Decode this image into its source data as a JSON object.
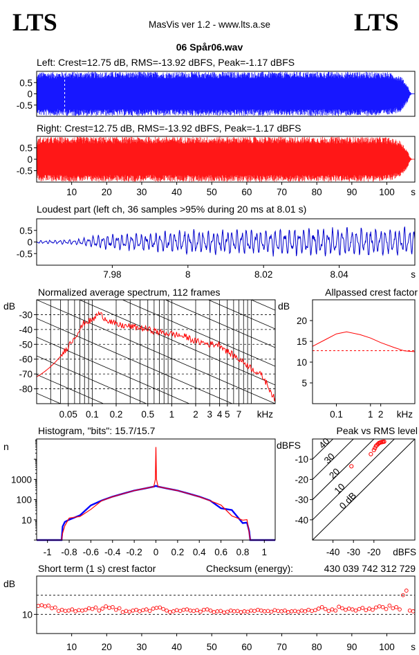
{
  "header": {
    "logo_left": "LTS",
    "logo_right": "LTS",
    "app_title": "MasVis ver 1.2 - www.lts.a.se",
    "file_name": "06 Spår06.wav"
  },
  "chart_data": [
    {
      "id": "left",
      "type": "area",
      "title": "Left: Crest=12.75 dB, RMS=-13.92 dBFS, Peak=-1.17 dBFS",
      "color": "#0000ff",
      "yticks": [
        "0.5",
        "0",
        "-0.5"
      ],
      "ytick_values": [
        0.5,
        0,
        -0.5
      ],
      "ylim": [
        -1,
        1
      ],
      "xlim": [
        0,
        108
      ],
      "marker_x": 8.01,
      "envelope": {
        "x": [
          0,
          0.5,
          1,
          5,
          10,
          20,
          30,
          40,
          50,
          60,
          70,
          80,
          90,
          100,
          104,
          106,
          106.5,
          107,
          108
        ],
        "amp": [
          0.8,
          0.92,
          0.97,
          0.97,
          0.98,
          0.98,
          0.98,
          0.98,
          0.98,
          0.98,
          0.98,
          0.98,
          0.98,
          0.97,
          0.8,
          0.35,
          0.12,
          0.02,
          0.01
        ]
      }
    },
    {
      "id": "right",
      "type": "area",
      "title": "Right: Crest=12.75 dB, RMS=-13.92 dBFS, Peak=-1.17 dBFS",
      "color": "#ff0000",
      "yticks": [
        "0.5",
        "0",
        "-0.5"
      ],
      "ytick_values": [
        0.5,
        0,
        -0.5
      ],
      "ylim": [
        -1,
        1
      ],
      "xlim": [
        0,
        108
      ],
      "xticks": [
        "10",
        "20",
        "30",
        "40",
        "50",
        "60",
        "70",
        "80",
        "90",
        "100"
      ],
      "xtick_values": [
        10,
        20,
        30,
        40,
        50,
        60,
        70,
        80,
        90,
        100
      ],
      "xunit": "s",
      "envelope": {
        "x": [
          0,
          0.5,
          1,
          5,
          10,
          20,
          30,
          40,
          50,
          60,
          70,
          80,
          90,
          100,
          104,
          106,
          106.5,
          107,
          108
        ],
        "amp": [
          0.8,
          0.92,
          0.97,
          0.97,
          0.98,
          0.98,
          0.98,
          0.98,
          0.98,
          0.98,
          0.98,
          0.98,
          0.98,
          0.97,
          0.8,
          0.35,
          0.12,
          0.02,
          0.01
        ]
      }
    },
    {
      "id": "loudest",
      "type": "line",
      "title": "Loudest part (left  ch, 36 samples >95% during 20 ms at 8.01 s)",
      "color": "#0000cc",
      "yticks": [
        "0.5",
        "0",
        "-0.5"
      ],
      "ytick_values": [
        0.5,
        0,
        -0.5
      ],
      "ylim": [
        -1,
        1
      ],
      "xlim": [
        7.96,
        8.06
      ],
      "xticks": [
        "7.98",
        "8",
        "8.02",
        "8.04"
      ],
      "xtick_values": [
        7.98,
        8.0,
        8.02,
        8.04
      ],
      "xunit": "s",
      "amp_profile": {
        "x": [
          7.96,
          7.965,
          7.97,
          7.975,
          7.98,
          7.99,
          8.0,
          8.01,
          8.02,
          8.03,
          8.04,
          8.05,
          8.06
        ],
        "amp": [
          0.08,
          0.1,
          0.12,
          0.3,
          0.4,
          0.45,
          0.6,
          0.62,
          0.65,
          0.7,
          0.7,
          0.72,
          0.72
        ]
      }
    },
    {
      "id": "spectrum",
      "type": "line",
      "title": "Normalized average spectrum, 112 frames",
      "color": "#ff0000",
      "ylabel": "dB",
      "yticks": [
        "-30",
        "-40",
        "-50",
        "-60",
        "-70",
        "-80"
      ],
      "ytick_values": [
        -30,
        -40,
        -50,
        -60,
        -70,
        -80
      ],
      "ylim": [
        -90,
        -20
      ],
      "xscale": "log",
      "xlim": [
        0.02,
        20
      ],
      "xticks": [
        "0.05",
        "0.1",
        "0.2",
        "0.5",
        "1",
        "2",
        "3",
        "4",
        "5",
        "7"
      ],
      "xtick_values": [
        0.05,
        0.1,
        0.2,
        0.5,
        1,
        2,
        3,
        4,
        5,
        7
      ],
      "xunit": "kHz",
      "x": [
        0.02,
        0.03,
        0.04,
        0.05,
        0.06,
        0.07,
        0.08,
        0.1,
        0.12,
        0.15,
        0.2,
        0.3,
        0.5,
        0.7,
        1,
        1.5,
        2,
        3,
        4,
        5,
        7,
        10,
        14,
        20
      ],
      "y": [
        -72,
        -65,
        -58,
        -51,
        -45,
        -40,
        -35,
        -34,
        -29,
        -33,
        -37,
        -38,
        -40,
        -42,
        -43,
        -45,
        -48,
        -50,
        -50,
        -55,
        -60,
        -66,
        -72,
        -88
      ]
    },
    {
      "id": "crest",
      "type": "line",
      "title": "Allpassed crest factor",
      "color": "#ff0000",
      "ylabel": "dB",
      "yticks": [
        "20",
        "15",
        "10",
        "5"
      ],
      "ytick_values": [
        20,
        15,
        10,
        5
      ],
      "ylim": [
        0,
        25
      ],
      "xscale": "log",
      "xlim": [
        0.02,
        20
      ],
      "xticks": [
        "0.1",
        "1",
        "2"
      ],
      "xtick_values": [
        0.1,
        1,
        2
      ],
      "xunit": "kHz",
      "x": [
        0.02,
        0.05,
        0.1,
        0.2,
        0.5,
        1,
        2,
        5,
        10,
        20
      ],
      "y": [
        13.8,
        15.5,
        16.8,
        17.3,
        16.6,
        15.8,
        14.7,
        13.5,
        12.7,
        12.5
      ],
      "reference": 12.75
    },
    {
      "id": "histogram",
      "type": "line",
      "title": "Histogram, \"bits\": 15.7/15.7",
      "ylabel": "n",
      "yscale": "log",
      "yticks": [
        "1000",
        "100",
        "10"
      ],
      "ytick_values": [
        1000,
        100,
        10
      ],
      "ylim": [
        1,
        100000
      ],
      "xlim": [
        -1.1,
        1.1
      ],
      "xticks": [
        "-1",
        "-0.8",
        "-0.6",
        "-0.4",
        "-0.2",
        "0",
        "0.2",
        "0.4",
        "0.6",
        "0.8",
        "1"
      ],
      "xtick_values": [
        -1,
        -0.8,
        -0.6,
        -0.4,
        -0.2,
        0,
        0.2,
        0.4,
        0.6,
        0.8,
        1
      ],
      "series": [
        {
          "color": "#0000ff",
          "x": [
            -1.1,
            -0.9,
            -0.87,
            -0.86,
            -0.84,
            -0.8,
            -0.7,
            -0.6,
            -0.5,
            -0.4,
            -0.3,
            -0.2,
            -0.1,
            -0.02,
            0,
            0.02,
            0.1,
            0.2,
            0.3,
            0.4,
            0.5,
            0.6,
            0.7,
            0.8,
            0.84,
            0.86,
            0.87,
            0.9,
            1.1
          ],
          "y": [
            1,
            1,
            1,
            4,
            7,
            10,
            25,
            50,
            90,
            140,
            200,
            280,
            360,
            440,
            480,
            440,
            360,
            280,
            200,
            140,
            90,
            50,
            25,
            10,
            7,
            4,
            1,
            1,
            1
          ]
        },
        {
          "color": "#ff0000",
          "x": [
            -1.1,
            -0.9,
            -0.87,
            -0.86,
            -0.84,
            -0.8,
            -0.7,
            -0.6,
            -0.5,
            -0.4,
            -0.3,
            -0.2,
            -0.1,
            -0.02,
            -0.005,
            0,
            0.005,
            0.02,
            0.1,
            0.2,
            0.3,
            0.4,
            0.5,
            0.6,
            0.7,
            0.8,
            0.84,
            0.86,
            0.87,
            0.9,
            1.1
          ],
          "y": [
            1,
            1,
            1,
            3,
            8,
            11,
            24,
            48,
            88,
            138,
            198,
            278,
            358,
            438,
            1000,
            40000,
            1000,
            438,
            358,
            278,
            198,
            138,
            88,
            48,
            24,
            11,
            8,
            3,
            1,
            1,
            1
          ]
        }
      ]
    },
    {
      "id": "peak_rms",
      "type": "scatter",
      "title": "Peak vs RMS level",
      "color": "#ff0000",
      "ylabel": "dBFS",
      "xlabel": "dBFS",
      "yticks": [
        "-10",
        "-20",
        "-30",
        "-40"
      ],
      "ytick_values": [
        -10,
        -20,
        -30,
        -40
      ],
      "xticks": [
        "-40",
        "-30",
        "-20"
      ],
      "xtick_values": [
        -40,
        -30,
        -20
      ],
      "xlim": [
        -50,
        0
      ],
      "ylim": [
        -50,
        0
      ],
      "diagonals": [
        {
          "label": "40",
          "offset": 40
        },
        {
          "label": "30",
          "offset": 30
        },
        {
          "label": "20",
          "offset": 20
        },
        {
          "label": "10",
          "offset": 10
        },
        {
          "label": "0 dB",
          "offset": 0
        }
      ],
      "points": [
        {
          "x": -31,
          "y": -13.5
        },
        {
          "x": -21.5,
          "y": -7.5
        },
        {
          "x": -20,
          "y": -5.5
        },
        {
          "x": -19.5,
          "y": -4.5
        },
        {
          "x": -19,
          "y": -3.5
        },
        {
          "x": -18.5,
          "y": -3
        },
        {
          "x": -18,
          "y": -2.5
        },
        {
          "x": -17.5,
          "y": -2
        },
        {
          "x": -17,
          "y": -1.8
        },
        {
          "x": -16.5,
          "y": -1.6
        },
        {
          "x": -16,
          "y": -1.5
        },
        {
          "x": -15.5,
          "y": -1.4
        },
        {
          "x": -15,
          "y": -1.3
        }
      ]
    },
    {
      "id": "short_term",
      "type": "scatter",
      "title": "Short term (1 s) crest factor",
      "checksum_label": "Checksum (energy):",
      "checksum_value": "430 039 742 312 729",
      "color": "#ff0000",
      "ylabel": "dB",
      "yticks": [
        "10"
      ],
      "ytick_values": [
        10
      ],
      "ylim": [
        5,
        20
      ],
      "xlim": [
        0,
        108
      ],
      "xticks": [
        "10",
        "20",
        "30",
        "40",
        "50",
        "60",
        "70",
        "80",
        "90",
        "100"
      ],
      "xtick_values": [
        10,
        20,
        30,
        40,
        50,
        60,
        70,
        80,
        90,
        100
      ],
      "xunit": "s",
      "refs": [
        10,
        15
      ],
      "y": [
        12.2,
        12.4,
        12.1,
        12.3,
        11.6,
        11.8,
        10.9,
        11.2,
        10.9,
        11.0,
        11.3,
        10.8,
        11.1,
        11.0,
        11.2,
        11.6,
        11.4,
        11.8,
        11.0,
        11.5,
        12.1,
        11.7,
        11.9,
        11.2,
        11.6,
        10.6,
        10.9,
        10.7,
        11.0,
        11.2,
        10.8,
        11.1,
        11.3,
        10.9,
        11.5,
        11.7,
        11.8,
        11.4,
        11.0,
        10.6,
        10.8,
        11.1,
        10.9,
        11.2,
        11.3,
        11.0,
        10.9,
        11.1,
        10.7,
        11.2,
        11.3,
        11.0,
        10.6,
        10.8,
        10.9,
        10.5,
        10.7,
        11.0,
        10.8,
        10.9,
        10.6,
        10.8,
        10.7,
        11.0,
        10.9,
        11.2,
        11.0,
        10.8,
        10.9,
        10.7,
        11.1,
        10.9,
        10.8,
        11.0,
        10.6,
        10.8,
        10.9,
        10.7,
        11.0,
        10.8,
        11.2,
        10.9,
        11.1,
        11.5,
        11.9,
        11.4,
        10.9,
        11.3,
        11.0,
        12.0,
        11.6,
        11.2,
        11.5,
        11.3,
        11.0,
        11.4,
        11.7,
        11.1,
        11.5,
        11.2,
        11.8,
        12.1,
        11.9,
        11.4,
        12.3,
        11.6,
        11.9,
        11.3,
        15.0,
        16.2,
        11.0,
        10.8
      ]
    }
  ]
}
